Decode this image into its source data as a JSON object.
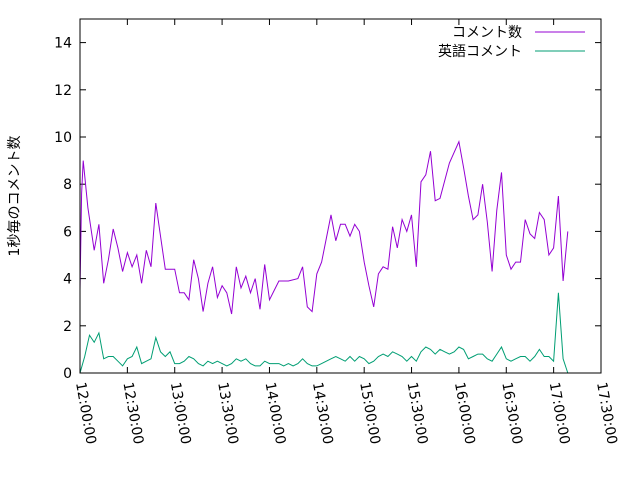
{
  "chart_data": {
    "type": "line",
    "title": "",
    "xlabel": "",
    "ylabel": "1秒毎のコメント数",
    "xlim": [
      "12:00:00",
      "17:30:00"
    ],
    "ylim": [
      0,
      15
    ],
    "x_ticks": [
      "12:00:00",
      "12:30:00",
      "13:00:00",
      "13:30:00",
      "14:00:00",
      "14:30:00",
      "15:00:00",
      "15:30:00",
      "16:00:00",
      "16:30:00",
      "17:00:00",
      "17:30:00"
    ],
    "y_ticks": [
      "0",
      "2",
      "4",
      "6",
      "8",
      "10",
      "12",
      "14"
    ],
    "grid": false,
    "legend": "top-right",
    "series": [
      {
        "name": "コメント数",
        "color": "#9400d3",
        "points": [
          [
            "12:00:00",
            3.5
          ],
          [
            "12:01:00",
            7.6
          ],
          [
            "12:02:00",
            9.0
          ],
          [
            "12:05:00",
            7.0
          ],
          [
            "12:09:00",
            5.2
          ],
          [
            "12:12:00",
            6.3
          ],
          [
            "12:15:00",
            3.8
          ],
          [
            "12:18:00",
            4.8
          ],
          [
            "12:21:00",
            6.1
          ],
          [
            "12:24:00",
            5.3
          ],
          [
            "12:27:00",
            4.3
          ],
          [
            "12:30:00",
            5.1
          ],
          [
            "12:33:00",
            4.5
          ],
          [
            "12:36:00",
            5.0
          ],
          [
            "12:39:00",
            3.8
          ],
          [
            "12:42:00",
            5.2
          ],
          [
            "12:45:00",
            4.5
          ],
          [
            "12:48:00",
            7.2
          ],
          [
            "12:51:00",
            5.8
          ],
          [
            "12:54:00",
            4.4
          ],
          [
            "12:57:00",
            4.4
          ],
          [
            "13:00:00",
            4.4
          ],
          [
            "13:03:00",
            3.4
          ],
          [
            "13:06:00",
            3.4
          ],
          [
            "13:09:00",
            3.1
          ],
          [
            "13:12:00",
            4.8
          ],
          [
            "13:15:00",
            4.0
          ],
          [
            "13:18:00",
            2.6
          ],
          [
            "13:21:00",
            3.8
          ],
          [
            "13:24:00",
            4.5
          ],
          [
            "13:27:00",
            3.2
          ],
          [
            "13:30:00",
            3.7
          ],
          [
            "13:33:00",
            3.4
          ],
          [
            "13:36:00",
            2.5
          ],
          [
            "13:39:00",
            4.5
          ],
          [
            "13:42:00",
            3.6
          ],
          [
            "13:45:00",
            4.1
          ],
          [
            "13:48:00",
            3.4
          ],
          [
            "13:51:00",
            4.0
          ],
          [
            "13:54:00",
            2.7
          ],
          [
            "13:57:00",
            4.6
          ],
          [
            "14:00:00",
            3.1
          ],
          [
            "14:03:00",
            3.5
          ],
          [
            "14:06:00",
            3.9
          ],
          [
            "14:12:00",
            3.9
          ],
          [
            "14:18:00",
            4.0
          ],
          [
            "14:21:00",
            4.5
          ],
          [
            "14:24:00",
            2.8
          ],
          [
            "14:27:00",
            2.6
          ],
          [
            "14:30:00",
            4.2
          ],
          [
            "14:33:00",
            4.7
          ],
          [
            "14:36:00",
            5.7
          ],
          [
            "14:39:00",
            6.7
          ],
          [
            "14:42:00",
            5.6
          ],
          [
            "14:45:00",
            6.3
          ],
          [
            "14:48:00",
            6.3
          ],
          [
            "14:51:00",
            5.8
          ],
          [
            "14:54:00",
            6.3
          ],
          [
            "14:57:00",
            6.0
          ],
          [
            "15:00:00",
            4.7
          ],
          [
            "15:03:00",
            3.7
          ],
          [
            "15:06:00",
            2.8
          ],
          [
            "15:09:00",
            4.2
          ],
          [
            "15:12:00",
            4.5
          ],
          [
            "15:15:00",
            4.4
          ],
          [
            "15:18:00",
            6.2
          ],
          [
            "15:21:00",
            5.3
          ],
          [
            "15:24:00",
            6.5
          ],
          [
            "15:27:00",
            6.0
          ],
          [
            "15:30:00",
            6.7
          ],
          [
            "15:33:00",
            4.5
          ],
          [
            "15:36:00",
            8.1
          ],
          [
            "15:39:00",
            8.4
          ],
          [
            "15:42:00",
            9.4
          ],
          [
            "15:45:00",
            7.3
          ],
          [
            "15:48:00",
            7.4
          ],
          [
            "15:54:00",
            8.9
          ],
          [
            "16:00:00",
            9.8
          ],
          [
            "16:03:00",
            8.7
          ],
          [
            "16:06:00",
            7.5
          ],
          [
            "16:09:00",
            6.5
          ],
          [
            "16:12:00",
            6.7
          ],
          [
            "16:15:00",
            8.0
          ],
          [
            "16:18:00",
            6.4
          ],
          [
            "16:21:00",
            4.3
          ],
          [
            "16:24:00",
            6.9
          ],
          [
            "16:27:00",
            8.5
          ],
          [
            "16:30:00",
            5.0
          ],
          [
            "16:33:00",
            4.4
          ],
          [
            "16:36:00",
            4.7
          ],
          [
            "16:39:00",
            4.7
          ],
          [
            "16:42:00",
            6.5
          ],
          [
            "16:45:00",
            5.9
          ],
          [
            "16:48:00",
            5.7
          ],
          [
            "16:51:00",
            6.8
          ],
          [
            "16:54:00",
            6.5
          ],
          [
            "16:57:00",
            5.0
          ],
          [
            "17:00:00",
            5.3
          ],
          [
            "17:03:00",
            7.5
          ],
          [
            "17:06:00",
            3.9
          ],
          [
            "17:09:00",
            6.0
          ]
        ]
      },
      {
        "name": "英語コメント",
        "color": "#009e73",
        "points": [
          [
            "12:00:00",
            0.0
          ],
          [
            "12:03:00",
            0.7
          ],
          [
            "12:06:00",
            1.6
          ],
          [
            "12:09:00",
            1.3
          ],
          [
            "12:12:00",
            1.7
          ],
          [
            "12:15:00",
            0.6
          ],
          [
            "12:18:00",
            0.7
          ],
          [
            "12:21:00",
            0.7
          ],
          [
            "12:24:00",
            0.5
          ],
          [
            "12:27:00",
            0.3
          ],
          [
            "12:30:00",
            0.6
          ],
          [
            "12:33:00",
            0.7
          ],
          [
            "12:36:00",
            1.1
          ],
          [
            "12:39:00",
            0.4
          ],
          [
            "12:42:00",
            0.5
          ],
          [
            "12:45:00",
            0.6
          ],
          [
            "12:48:00",
            1.5
          ],
          [
            "12:51:00",
            0.9
          ],
          [
            "12:54:00",
            0.7
          ],
          [
            "12:57:00",
            0.9
          ],
          [
            "13:00:00",
            0.4
          ],
          [
            "13:03:00",
            0.4
          ],
          [
            "13:06:00",
            0.5
          ],
          [
            "13:09:00",
            0.7
          ],
          [
            "13:12:00",
            0.6
          ],
          [
            "13:15:00",
            0.4
          ],
          [
            "13:18:00",
            0.3
          ],
          [
            "13:21:00",
            0.5
          ],
          [
            "13:24:00",
            0.4
          ],
          [
            "13:27:00",
            0.5
          ],
          [
            "13:30:00",
            0.4
          ],
          [
            "13:33:00",
            0.3
          ],
          [
            "13:36:00",
            0.4
          ],
          [
            "13:39:00",
            0.6
          ],
          [
            "13:42:00",
            0.5
          ],
          [
            "13:45:00",
            0.6
          ],
          [
            "13:48:00",
            0.4
          ],
          [
            "13:51:00",
            0.3
          ],
          [
            "13:54:00",
            0.3
          ],
          [
            "13:57:00",
            0.5
          ],
          [
            "14:00:00",
            0.4
          ],
          [
            "14:06:00",
            0.4
          ],
          [
            "14:09:00",
            0.3
          ],
          [
            "14:12:00",
            0.4
          ],
          [
            "14:15:00",
            0.3
          ],
          [
            "14:18:00",
            0.4
          ],
          [
            "14:21:00",
            0.6
          ],
          [
            "14:24:00",
            0.4
          ],
          [
            "14:27:00",
            0.3
          ],
          [
            "14:30:00",
            0.3
          ],
          [
            "14:33:00",
            0.4
          ],
          [
            "14:36:00",
            0.5
          ],
          [
            "14:39:00",
            0.6
          ],
          [
            "14:42:00",
            0.7
          ],
          [
            "14:45:00",
            0.6
          ],
          [
            "14:48:00",
            0.5
          ],
          [
            "14:51:00",
            0.7
          ],
          [
            "14:54:00",
            0.5
          ],
          [
            "14:57:00",
            0.7
          ],
          [
            "15:00:00",
            0.6
          ],
          [
            "15:03:00",
            0.4
          ],
          [
            "15:06:00",
            0.5
          ],
          [
            "15:09:00",
            0.7
          ],
          [
            "15:12:00",
            0.8
          ],
          [
            "15:15:00",
            0.7
          ],
          [
            "15:18:00",
            0.9
          ],
          [
            "15:21:00",
            0.8
          ],
          [
            "15:24:00",
            0.7
          ],
          [
            "15:27:00",
            0.5
          ],
          [
            "15:30:00",
            0.7
          ],
          [
            "15:33:00",
            0.5
          ],
          [
            "15:36:00",
            0.9
          ],
          [
            "15:39:00",
            1.1
          ],
          [
            "15:42:00",
            1.0
          ],
          [
            "15:45:00",
            0.8
          ],
          [
            "15:48:00",
            1.0
          ],
          [
            "15:51:00",
            0.9
          ],
          [
            "15:54:00",
            0.8
          ],
          [
            "15:57:00",
            0.9
          ],
          [
            "16:00:00",
            1.1
          ],
          [
            "16:03:00",
            1.0
          ],
          [
            "16:06:00",
            0.6
          ],
          [
            "16:09:00",
            0.7
          ],
          [
            "16:12:00",
            0.8
          ],
          [
            "16:15:00",
            0.8
          ],
          [
            "16:18:00",
            0.6
          ],
          [
            "16:21:00",
            0.5
          ],
          [
            "16:24:00",
            0.8
          ],
          [
            "16:27:00",
            1.1
          ],
          [
            "16:30:00",
            0.6
          ],
          [
            "16:33:00",
            0.5
          ],
          [
            "16:36:00",
            0.6
          ],
          [
            "16:39:00",
            0.7
          ],
          [
            "16:42:00",
            0.7
          ],
          [
            "16:45:00",
            0.5
          ],
          [
            "16:48:00",
            0.7
          ],
          [
            "16:51:00",
            1.0
          ],
          [
            "16:54:00",
            0.7
          ],
          [
            "16:57:00",
            0.7
          ],
          [
            "17:00:00",
            0.5
          ],
          [
            "17:03:00",
            3.4
          ],
          [
            "17:06:00",
            0.6
          ],
          [
            "17:09:00",
            0.0
          ]
        ]
      }
    ]
  }
}
